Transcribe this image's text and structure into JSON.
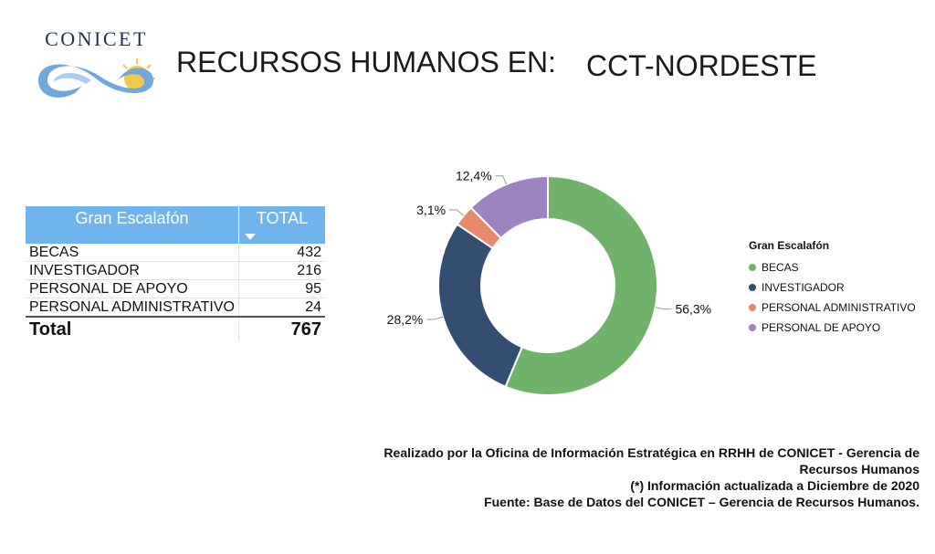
{
  "header": {
    "logo_text": "CONICET",
    "title": "RECURSOS HUMANOS EN:",
    "subject": "CCT-NORDESTE"
  },
  "table": {
    "col_name": "Gran Escalafón",
    "col_total": "TOTAL",
    "rows": [
      {
        "name": "BECAS",
        "value": "432"
      },
      {
        "name": "INVESTIGADOR",
        "value": "216"
      },
      {
        "name": "PERSONAL DE APOYO",
        "value": "95"
      },
      {
        "name": "PERSONAL ADMINISTRATIVO",
        "value": "24"
      }
    ],
    "total_label": "Total",
    "total_value": "767"
  },
  "chart_data": {
    "type": "pie",
    "donut": true,
    "legend_title": "Gran Escalafón",
    "legend_position": "right",
    "slices": [
      {
        "label": "BECAS",
        "value": 432,
        "percent_label": "56,3%",
        "color": "#70b26b"
      },
      {
        "label": "INVESTIGADOR",
        "value": 216,
        "percent_label": "28,2%",
        "color": "#344e72"
      },
      {
        "label": "PERSONAL ADMINISTRATIVO",
        "value": 24,
        "percent_label": "3,1%",
        "color": "#e78a6c"
      },
      {
        "label": "PERSONAL DE APOYO",
        "value": 95,
        "percent_label": "12,4%",
        "color": "#9d84c1"
      }
    ]
  },
  "notes": {
    "line1": "Realizado por la Oficina de Información Estratégica en RRHH de CONICET - Gerencia de Recursos Humanos",
    "line2": "(*) Información actualizada a Diciembre de 2020",
    "line3": "Fuente: Base de Datos del CONICET – Gerencia de Recursos Humanos."
  }
}
